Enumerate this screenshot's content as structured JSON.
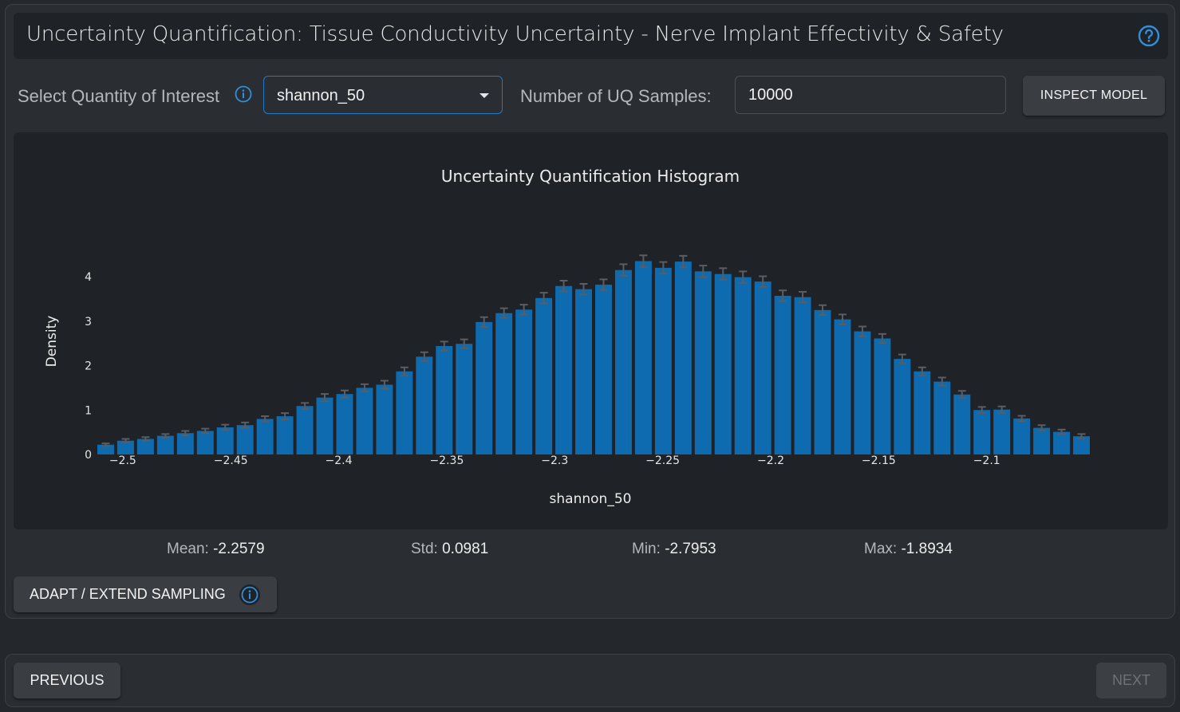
{
  "header": {
    "title": "Uncertainty Quantification: Tissue Conductivity Uncertainty - Nerve Implant Effectivity & Safety",
    "help_icon": "question-circle-icon"
  },
  "controls": {
    "qoi_label": "Select Quantity of Interest",
    "qoi_info_icon": "info-circle-icon",
    "qoi_selected": "shannon_50",
    "samples_label": "Number of UQ Samples:",
    "samples_value": "10000",
    "inspect_label": "INSPECT MODEL"
  },
  "colors": {
    "bar": "#0e6bb0",
    "error_bar": "#5a5d61",
    "accent": "#1f78c8"
  },
  "chart_data": {
    "type": "bar",
    "title": "Uncertainty Quantification Histogram",
    "xlabel": "shannon_50",
    "ylabel": "Density",
    "xlim": [
      -2.5125,
      -2.0515
    ],
    "ylim": [
      0,
      4.7
    ],
    "x_ticks": [
      -2.5,
      -2.45,
      -2.4,
      -2.35,
      -2.3,
      -2.25,
      -2.2,
      -2.15,
      -2.1
    ],
    "x_tick_labels": [
      "−2.5",
      "−2.45",
      "−2.4",
      "−2.35",
      "−2.3",
      "−2.25",
      "−2.2",
      "−2.15",
      "−2.1"
    ],
    "y_ticks": [
      0,
      1,
      2,
      3,
      4
    ],
    "y_tick_labels": [
      "0",
      "1",
      "2",
      "3",
      "4"
    ],
    "bin_start": -2.5125,
    "bin_width": 0.00922,
    "values": [
      0.22,
      0.31,
      0.35,
      0.42,
      0.48,
      0.53,
      0.61,
      0.66,
      0.8,
      0.86,
      1.09,
      1.28,
      1.36,
      1.5,
      1.57,
      1.87,
      2.2,
      2.44,
      2.49,
      2.98,
      3.18,
      3.26,
      3.52,
      3.79,
      3.72,
      3.82,
      4.15,
      4.35,
      4.2,
      4.34,
      4.12,
      4.06,
      3.99,
      3.89,
      3.57,
      3.54,
      3.25,
      3.04,
      2.77,
      2.61,
      2.15,
      1.87,
      1.64,
      1.35,
      1.0,
      1.01,
      0.81,
      0.6,
      0.51,
      0.41
    ],
    "error": [
      0.03,
      0.04,
      0.04,
      0.04,
      0.05,
      0.05,
      0.06,
      0.06,
      0.06,
      0.07,
      0.07,
      0.08,
      0.08,
      0.08,
      0.09,
      0.09,
      0.1,
      0.1,
      0.1,
      0.11,
      0.11,
      0.11,
      0.12,
      0.12,
      0.12,
      0.12,
      0.13,
      0.13,
      0.13,
      0.13,
      0.13,
      0.13,
      0.13,
      0.12,
      0.12,
      0.12,
      0.11,
      0.11,
      0.11,
      0.1,
      0.1,
      0.09,
      0.09,
      0.08,
      0.07,
      0.07,
      0.06,
      0.06,
      0.05,
      0.05
    ],
    "grid": false
  },
  "stats": {
    "mean_label": "Mean:",
    "mean_value": "-2.2579",
    "std_label": "Std:",
    "std_value": "0.0981",
    "min_label": "Min:",
    "min_value": "-2.7953",
    "max_label": "Max:",
    "max_value": "-1.8934"
  },
  "adapt": {
    "label": "ADAPT / EXTEND SAMPLING",
    "icon": "info-circle-icon"
  },
  "footer": {
    "previous_label": "PREVIOUS",
    "next_label": "NEXT"
  }
}
